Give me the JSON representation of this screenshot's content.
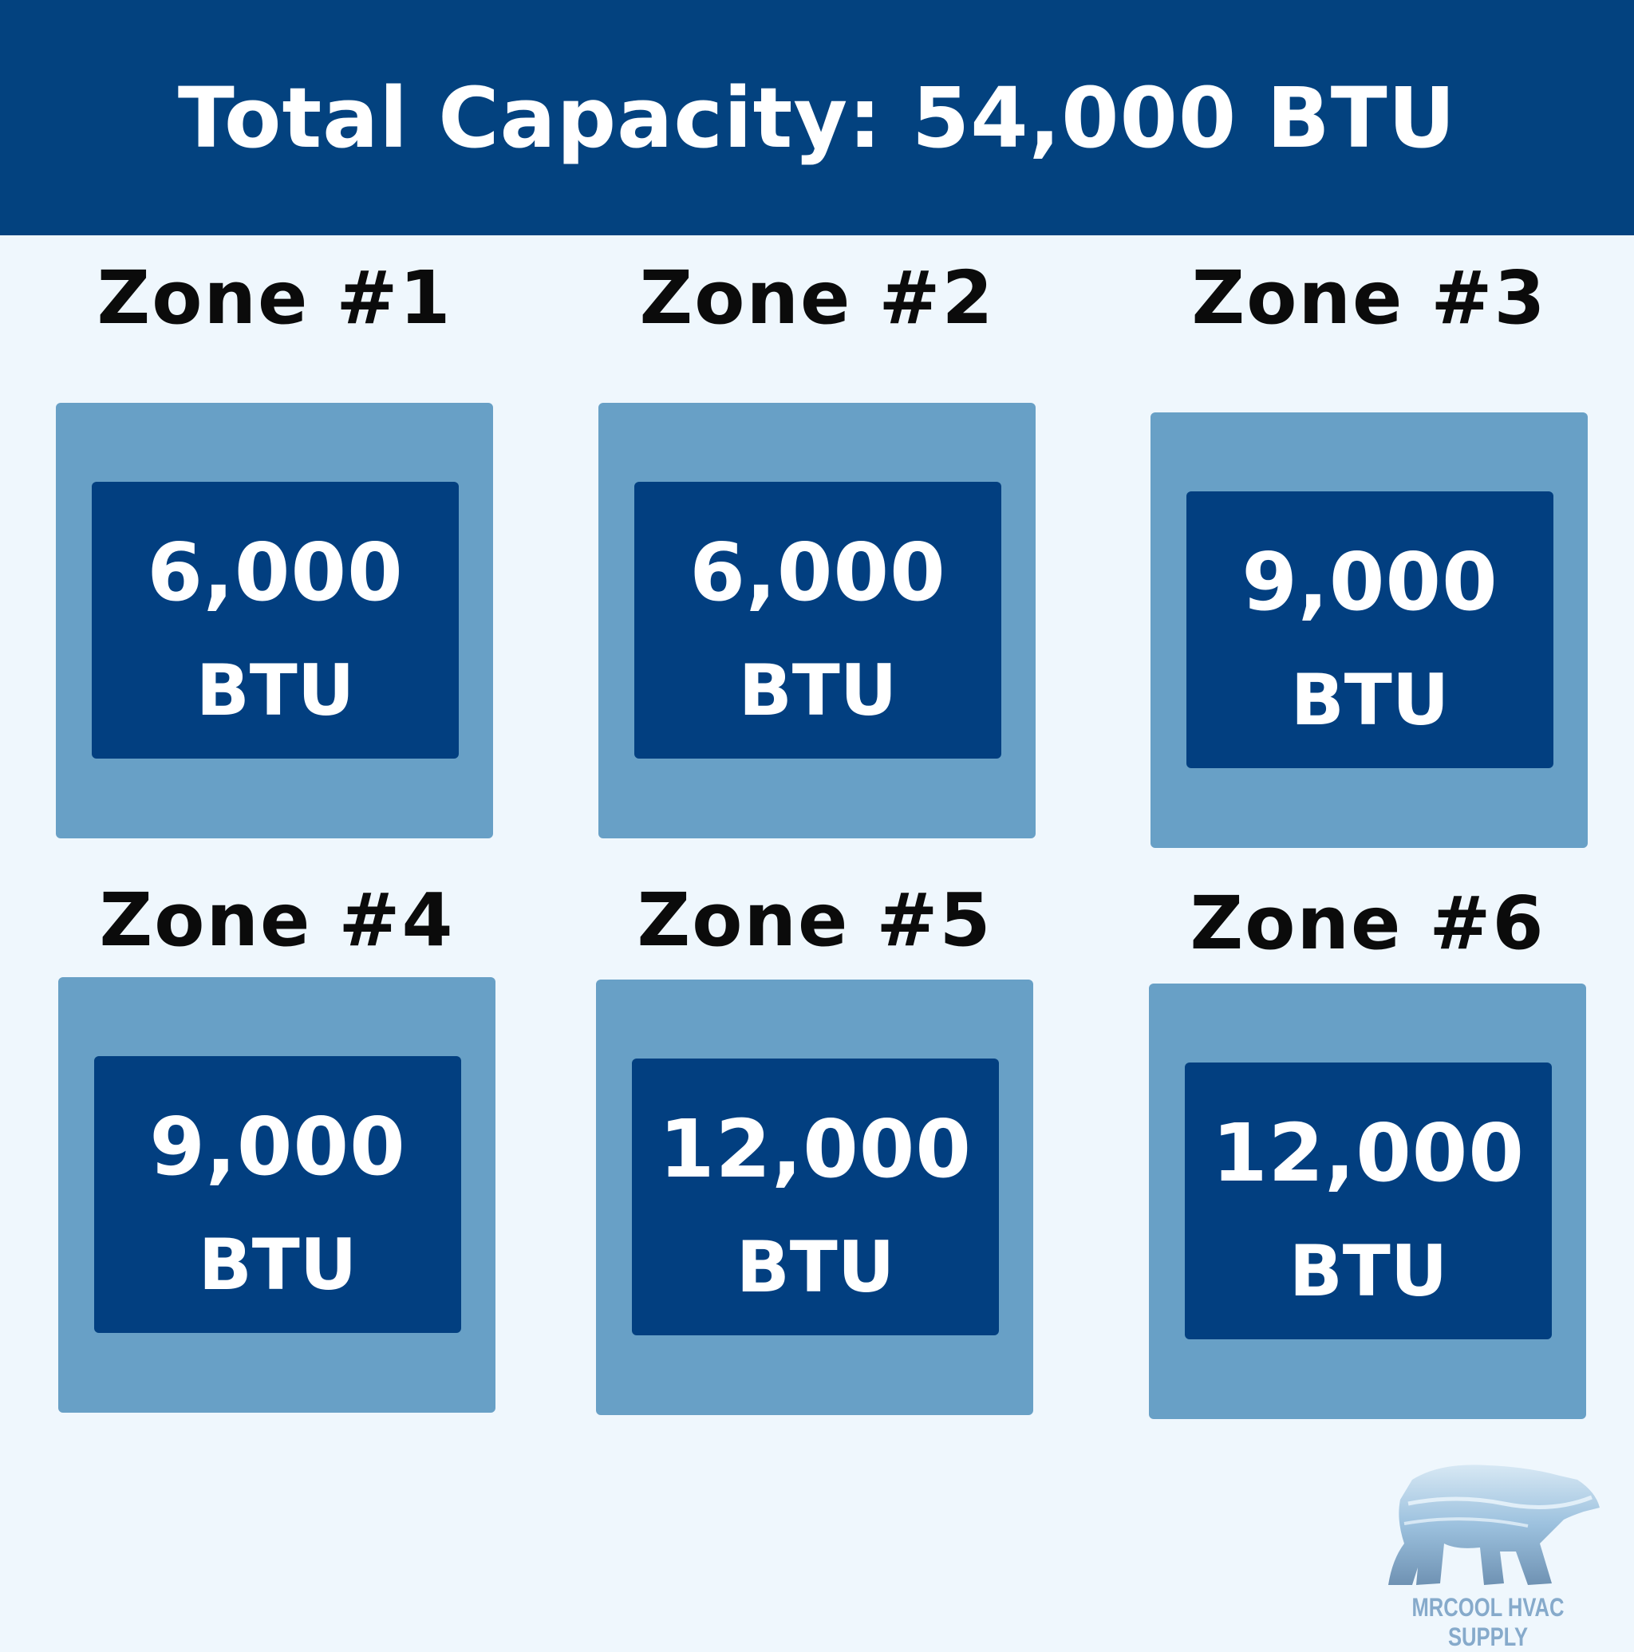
{
  "header": {
    "title": "Total Capacity: 54,000 BTU"
  },
  "zones": [
    {
      "title": "Zone #1",
      "value": "6,000",
      "unit": "BTU"
    },
    {
      "title": "Zone #2",
      "value": "6,000",
      "unit": "BTU"
    },
    {
      "title": "Zone #3",
      "value": "9,000",
      "unit": "BTU"
    },
    {
      "title": "Zone #4",
      "value": "9,000",
      "unit": "BTU"
    },
    {
      "title": "Zone #5",
      "value": "12,000",
      "unit": "BTU"
    },
    {
      "title": "Zone #6",
      "value": "12,000",
      "unit": "BTU"
    }
  ],
  "logo": {
    "text": "MRCOOL HVAC SUPPLY",
    "icon": "polar-bear-icon"
  },
  "colors": {
    "header": "#03427f",
    "background": "#eff7fd",
    "outer_box": "#68a0c6",
    "inner_box": "#023f80"
  }
}
